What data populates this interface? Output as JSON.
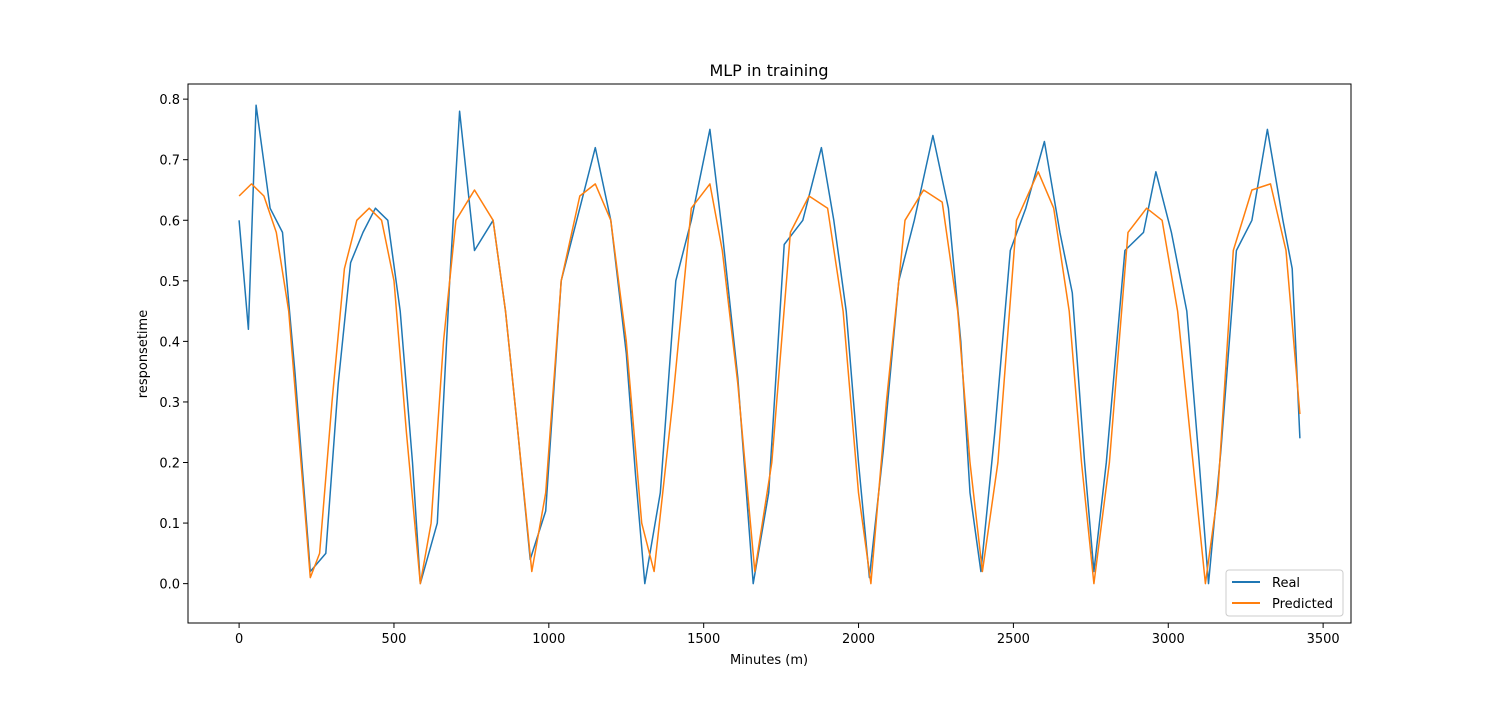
{
  "chart_data": {
    "type": "line",
    "title": "MLP in training",
    "xlabel": "Minutes (m)",
    "ylabel": "responsetime",
    "xlim": [
      -165,
      3590
    ],
    "ylim": [
      -0.065,
      0.825
    ],
    "xticks": [
      0,
      500,
      1000,
      1500,
      2000,
      2500,
      3000,
      3500
    ],
    "xtick_labels": [
      "0",
      "500",
      "1000",
      "1500",
      "2000",
      "2500",
      "3000",
      "3500"
    ],
    "yticks": [
      0.0,
      0.1,
      0.2,
      0.3,
      0.4,
      0.5,
      0.6,
      0.7,
      0.8
    ],
    "ytick_labels": [
      "0.0",
      "0.1",
      "0.2",
      "0.3",
      "0.4",
      "0.5",
      "0.6",
      "0.7",
      "0.8"
    ],
    "legend_position": "lower-right",
    "grid": false,
    "series": [
      {
        "name": "Real",
        "color": "#1f77b4",
        "x": [
          0,
          30,
          55,
          100,
          140,
          180,
          230,
          280,
          320,
          360,
          400,
          440,
          480,
          520,
          560,
          585,
          640,
          680,
          712,
          760,
          820,
          860,
          900,
          940,
          990,
          1040,
          1100,
          1150,
          1200,
          1250,
          1280,
          1310,
          1360,
          1410,
          1460,
          1520,
          1560,
          1610,
          1660,
          1710,
          1760,
          1820,
          1880,
          1920,
          1960,
          2000,
          2035,
          2080,
          2130,
          2180,
          2240,
          2290,
          2330,
          2360,
          2395,
          2440,
          2490,
          2540,
          2600,
          2650,
          2690,
          2730,
          2760,
          2800,
          2860,
          2920,
          2960,
          3010,
          3060,
          3100,
          3130,
          3170,
          3220,
          3270,
          3320,
          3370,
          3400,
          3425
        ],
        "y": [
          0.6,
          0.42,
          0.79,
          0.62,
          0.58,
          0.35,
          0.02,
          0.05,
          0.33,
          0.53,
          0.58,
          0.62,
          0.6,
          0.45,
          0.2,
          0.0,
          0.1,
          0.5,
          0.78,
          0.55,
          0.6,
          0.45,
          0.25,
          0.04,
          0.12,
          0.5,
          0.62,
          0.72,
          0.6,
          0.38,
          0.18,
          0.0,
          0.15,
          0.5,
          0.6,
          0.75,
          0.58,
          0.34,
          0.0,
          0.15,
          0.56,
          0.6,
          0.72,
          0.6,
          0.45,
          0.2,
          0.01,
          0.22,
          0.5,
          0.6,
          0.74,
          0.62,
          0.4,
          0.15,
          0.02,
          0.25,
          0.55,
          0.62,
          0.73,
          0.58,
          0.48,
          0.2,
          0.02,
          0.2,
          0.55,
          0.58,
          0.68,
          0.58,
          0.45,
          0.2,
          0.0,
          0.22,
          0.55,
          0.6,
          0.75,
          0.6,
          0.52,
          0.24
        ]
      },
      {
        "name": "Predicted",
        "color": "#ff7f0e",
        "x": [
          0,
          40,
          80,
          120,
          160,
          200,
          230,
          260,
          300,
          340,
          380,
          420,
          460,
          500,
          540,
          585,
          620,
          660,
          700,
          760,
          820,
          860,
          900,
          945,
          990,
          1040,
          1100,
          1150,
          1200,
          1250,
          1300,
          1340,
          1400,
          1460,
          1520,
          1560,
          1610,
          1665,
          1720,
          1780,
          1840,
          1900,
          1950,
          2000,
          2040,
          2090,
          2150,
          2210,
          2270,
          2320,
          2360,
          2400,
          2450,
          2510,
          2580,
          2630,
          2680,
          2720,
          2760,
          2810,
          2870,
          2930,
          2980,
          3030,
          3080,
          3120,
          3160,
          3210,
          3270,
          3330,
          3380,
          3425
        ],
        "y": [
          0.64,
          0.66,
          0.64,
          0.58,
          0.45,
          0.2,
          0.01,
          0.05,
          0.3,
          0.52,
          0.6,
          0.62,
          0.6,
          0.5,
          0.25,
          0.0,
          0.1,
          0.4,
          0.6,
          0.65,
          0.6,
          0.45,
          0.25,
          0.02,
          0.15,
          0.5,
          0.64,
          0.66,
          0.6,
          0.4,
          0.1,
          0.02,
          0.3,
          0.62,
          0.66,
          0.55,
          0.33,
          0.02,
          0.2,
          0.58,
          0.64,
          0.62,
          0.45,
          0.15,
          0.0,
          0.3,
          0.6,
          0.65,
          0.63,
          0.45,
          0.2,
          0.02,
          0.2,
          0.6,
          0.68,
          0.62,
          0.45,
          0.2,
          0.0,
          0.2,
          0.58,
          0.62,
          0.6,
          0.45,
          0.2,
          0.0,
          0.15,
          0.55,
          0.65,
          0.66,
          0.55,
          0.28
        ]
      }
    ]
  }
}
